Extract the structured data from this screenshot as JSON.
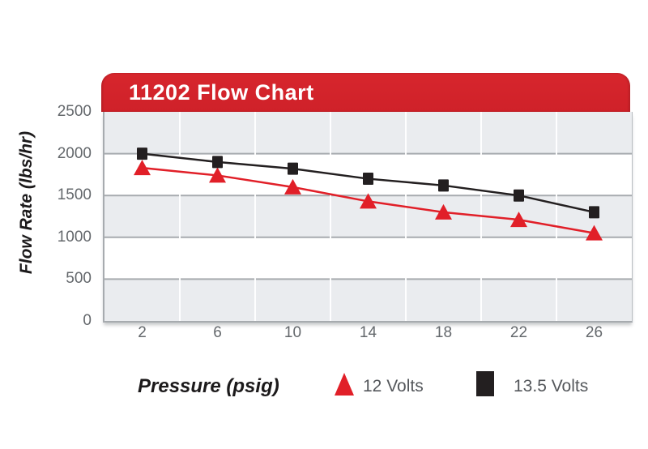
{
  "chart_data": {
    "type": "line",
    "title": "11202 Flow Chart",
    "xlabel": "Pressure (psig)",
    "ylabel": "Flow Rate (lbs/hr)",
    "categories": [
      2,
      6,
      10,
      14,
      18,
      22,
      26
    ],
    "yticks": [
      0,
      500,
      1000,
      1500,
      2000,
      2500
    ],
    "ylim": [
      0,
      2500
    ],
    "grid": "horizontal-bands with column separators",
    "legend_position": "bottom",
    "series": [
      {
        "name": "12 Volts",
        "marker": "triangle",
        "color": "#e11f28",
        "values": [
          1830,
          1740,
          1600,
          1430,
          1300,
          1210,
          1050
        ]
      },
      {
        "name": "13.5 Volts",
        "marker": "square",
        "color": "#231f20",
        "values": [
          2000,
          1900,
          1820,
          1700,
          1620,
          1500,
          1300
        ]
      }
    ],
    "colors": {
      "banner_red": "#d2242b",
      "band_gray": "#eaecef",
      "gridline_gray": "#a7abaf",
      "tick_text": "#64686c",
      "legend_text": "#54575b"
    }
  }
}
